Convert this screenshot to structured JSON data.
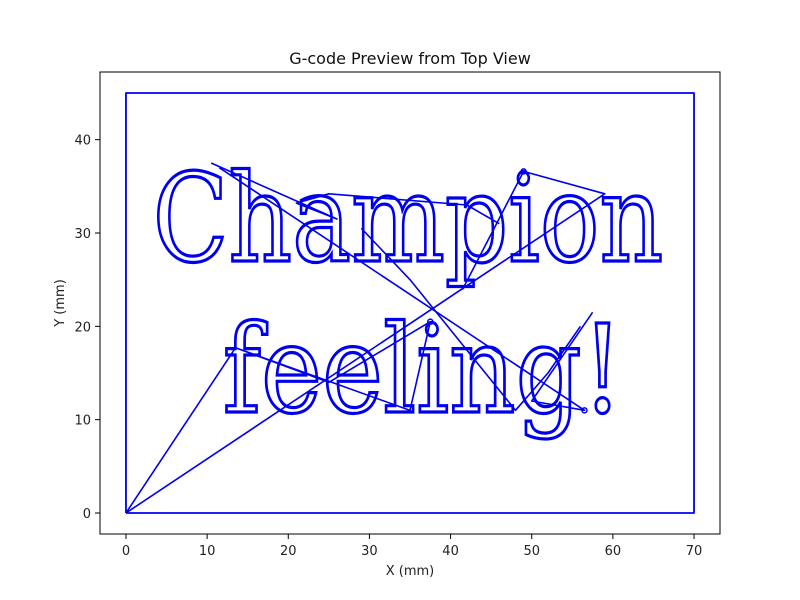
{
  "chart_data": {
    "type": "line",
    "title": "G-code Preview from Top View",
    "xlabel": "X (mm)",
    "ylabel": "Y (mm)",
    "xlim": [
      -3.2,
      73.2
    ],
    "ylim": [
      -2.25,
      47.25
    ],
    "xticks": [
      0,
      10,
      20,
      30,
      40,
      50,
      60,
      70
    ],
    "yticks": [
      0,
      10,
      20,
      30,
      40
    ],
    "grid": false,
    "line_color": "#0000ee",
    "series": [
      {
        "role": "border",
        "points": [
          [
            0,
            0
          ],
          [
            70,
            0
          ],
          [
            70,
            45
          ],
          [
            0,
            45
          ],
          [
            0,
            0
          ]
        ]
      },
      {
        "role": "travel",
        "points": [
          [
            0,
            0
          ],
          [
            13.5,
            17.7
          ],
          [
            25,
            14
          ],
          [
            37.5,
            20.5
          ],
          [
            35,
            11
          ],
          [
            13.5,
            17.7
          ]
        ]
      },
      {
        "role": "travel",
        "points": [
          [
            0,
            0
          ],
          [
            59,
            34.2
          ],
          [
            49,
            36.6
          ],
          [
            41.5,
            24
          ],
          [
            49,
            36.6
          ]
        ]
      },
      {
        "role": "travel",
        "points": [
          [
            10.5,
            37.5
          ],
          [
            26,
            31.5
          ],
          [
            21,
            33.2
          ],
          [
            25,
            34.2
          ],
          [
            42,
            33
          ],
          [
            46,
            31
          ]
        ]
      },
      {
        "role": "travel",
        "points": [
          [
            11.5,
            37
          ],
          [
            56.5,
            11
          ],
          [
            50,
            12
          ],
          [
            57.5,
            21.5
          ]
        ]
      },
      {
        "role": "travel",
        "points": [
          [
            29,
            30.5
          ],
          [
            35,
            25
          ],
          [
            48,
            11
          ],
          [
            52,
            15
          ],
          [
            56,
            20
          ]
        ]
      }
    ],
    "text_path": {
      "lines": [
        "Champion",
        "feeling!"
      ],
      "baselines_y": [
        27.0,
        10.8
      ],
      "x_start": 3.3,
      "x_end": 66.2
    },
    "markers": [
      [
        49,
        36.6
      ],
      [
        37.5,
        20.5
      ],
      [
        56.5,
        11
      ]
    ]
  }
}
